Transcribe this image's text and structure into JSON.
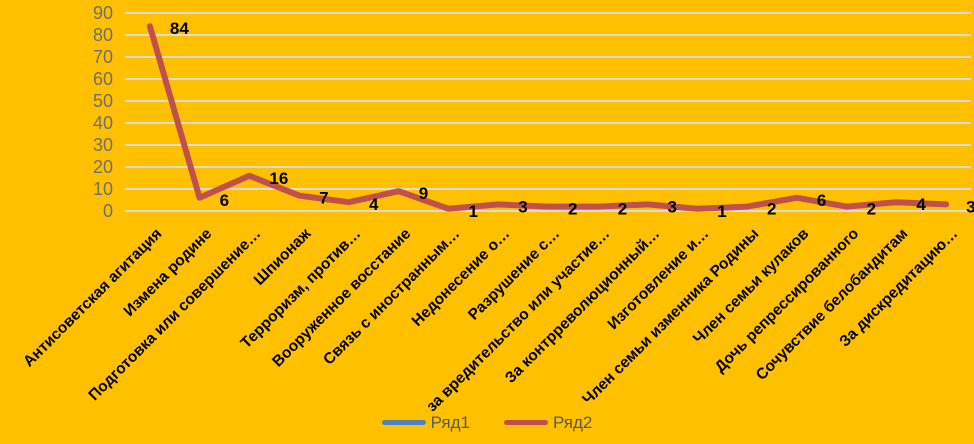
{
  "chart_data": {
    "type": "line",
    "title": "",
    "xlabel": "",
    "ylabel": "",
    "categories": [
      "Антисоветская агитация",
      "Измена родине",
      "Подготовка или совершение…",
      "Шпионаж",
      "Терроризм, против…",
      "Вооруженное восстание",
      "Связь с иностранным…",
      "Недонесение о…",
      "Разрушение с…",
      "за вредительство или участие…",
      "За контрреволюционный…",
      "Изготовление и…",
      "Член семьи изменника Родины",
      "Член семьи кулаков",
      "Дочь репрессированного",
      "Сочувствие белобандитам",
      "За дискредитацию…"
    ],
    "series": [
      {
        "name": "Ряд1",
        "color": "#4F81BD",
        "values": []
      },
      {
        "name": "Ряд2",
        "color": "#C0504D",
        "values": [
          84,
          6,
          16,
          7,
          4,
          9,
          1,
          3,
          2,
          2,
          3,
          1,
          2,
          6,
          2,
          4,
          3
        ]
      }
    ],
    "ylim": [
      0,
      90
    ],
    "yticks": [
      0,
      10,
      20,
      30,
      40,
      50,
      60,
      70,
      80,
      90
    ],
    "grid": true,
    "data_labels": true,
    "legend_position": "bottom"
  },
  "colors": {
    "background": "#FFC000",
    "gridline": "#DBDBDB",
    "y_tick_text": "#6F6F6F",
    "category_text": "#000000",
    "data_label_text": "#000000",
    "legend_text": "#595959"
  }
}
